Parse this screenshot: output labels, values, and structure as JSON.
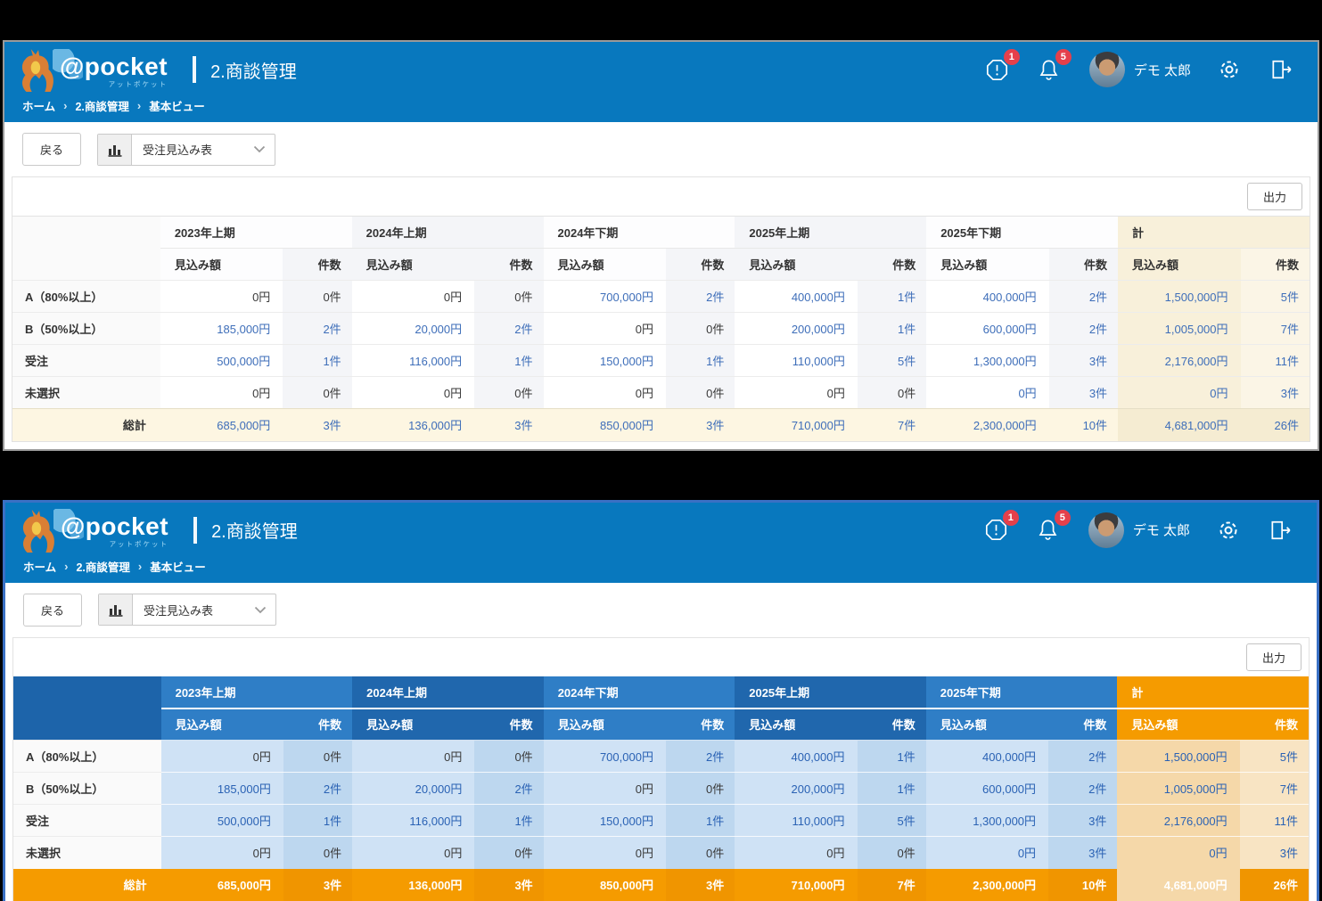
{
  "app": {
    "brand": "@pocket",
    "brand_sub": "アットポケット",
    "page_title": "2.商談管理",
    "user_name": "デモ 太郎",
    "alert_badge": "1",
    "bell_badge": "5"
  },
  "breadcrumb": {
    "items": [
      "ホーム",
      "2.商談管理",
      "基本ビュー"
    ],
    "separator": "›"
  },
  "toolbar": {
    "back_label": "戻る",
    "view_select": "受注見込み表"
  },
  "table": {
    "export_label": "出力",
    "period_groups": [
      "2023年上期",
      "2024年上期",
      "2024年下期",
      "2025年上期",
      "2025年下期",
      "計"
    ],
    "sub_headers": [
      "見込み額",
      "件数"
    ],
    "rows": [
      {
        "label": "A（80%以上）",
        "cells": [
          {
            "amount": "0円",
            "count": "0件",
            "link": false
          },
          {
            "amount": "0円",
            "count": "0件",
            "link": false
          },
          {
            "amount": "700,000円",
            "count": "2件",
            "link": true
          },
          {
            "amount": "400,000円",
            "count": "1件",
            "link": true
          },
          {
            "amount": "400,000円",
            "count": "2件",
            "link": true
          },
          {
            "amount": "1,500,000円",
            "count": "5件",
            "link": true
          }
        ]
      },
      {
        "label": "B（50%以上）",
        "cells": [
          {
            "amount": "185,000円",
            "count": "2件",
            "link": true
          },
          {
            "amount": "20,000円",
            "count": "2件",
            "link": true
          },
          {
            "amount": "0円",
            "count": "0件",
            "link": false
          },
          {
            "amount": "200,000円",
            "count": "1件",
            "link": true
          },
          {
            "amount": "600,000円",
            "count": "2件",
            "link": true
          },
          {
            "amount": "1,005,000円",
            "count": "7件",
            "link": true
          }
        ]
      },
      {
        "label": "受注",
        "cells": [
          {
            "amount": "500,000円",
            "count": "1件",
            "link": true
          },
          {
            "amount": "116,000円",
            "count": "1件",
            "link": true
          },
          {
            "amount": "150,000円",
            "count": "1件",
            "link": true
          },
          {
            "amount": "110,000円",
            "count": "5件",
            "link": true
          },
          {
            "amount": "1,300,000円",
            "count": "3件",
            "link": true
          },
          {
            "amount": "2,176,000円",
            "count": "11件",
            "link": true
          }
        ]
      },
      {
        "label": "未選択",
        "cells": [
          {
            "amount": "0円",
            "count": "0件",
            "link": false
          },
          {
            "amount": "0円",
            "count": "0件",
            "link": false
          },
          {
            "amount": "0円",
            "count": "0件",
            "link": false
          },
          {
            "amount": "0円",
            "count": "0件",
            "link": false
          },
          {
            "amount": "0円",
            "count": "3件",
            "link": true
          },
          {
            "amount": "0円",
            "count": "3件",
            "link": true
          }
        ]
      }
    ],
    "total": {
      "label": "総計",
      "cells": [
        {
          "amount": "685,000円",
          "count": "3件",
          "link": true
        },
        {
          "amount": "136,000円",
          "count": "3件",
          "link": true
        },
        {
          "amount": "850,000円",
          "count": "3件",
          "link": true
        },
        {
          "amount": "710,000円",
          "count": "7件",
          "link": true
        },
        {
          "amount": "2,300,000円",
          "count": "10件",
          "link": true
        },
        {
          "amount": "4,681,000円",
          "count": "26件",
          "link": true
        }
      ]
    }
  },
  "icons": {
    "alert": "octagon-exclamation",
    "notifications": "bell",
    "settings": "gear",
    "logout": "door-arrow",
    "view": "bar-chart",
    "caret": "chevron-down"
  },
  "colors": {
    "header_blue": "#0878be",
    "accent_orange": "#f59b00",
    "link_blue": "#3e6eb9",
    "badge_red": "#e5404b",
    "table_blue_light": "#cfe2f5",
    "table_blue_header": "#2f7ec6",
    "table_cream": "#f8f0da",
    "colored_border": "#3a70c4"
  }
}
